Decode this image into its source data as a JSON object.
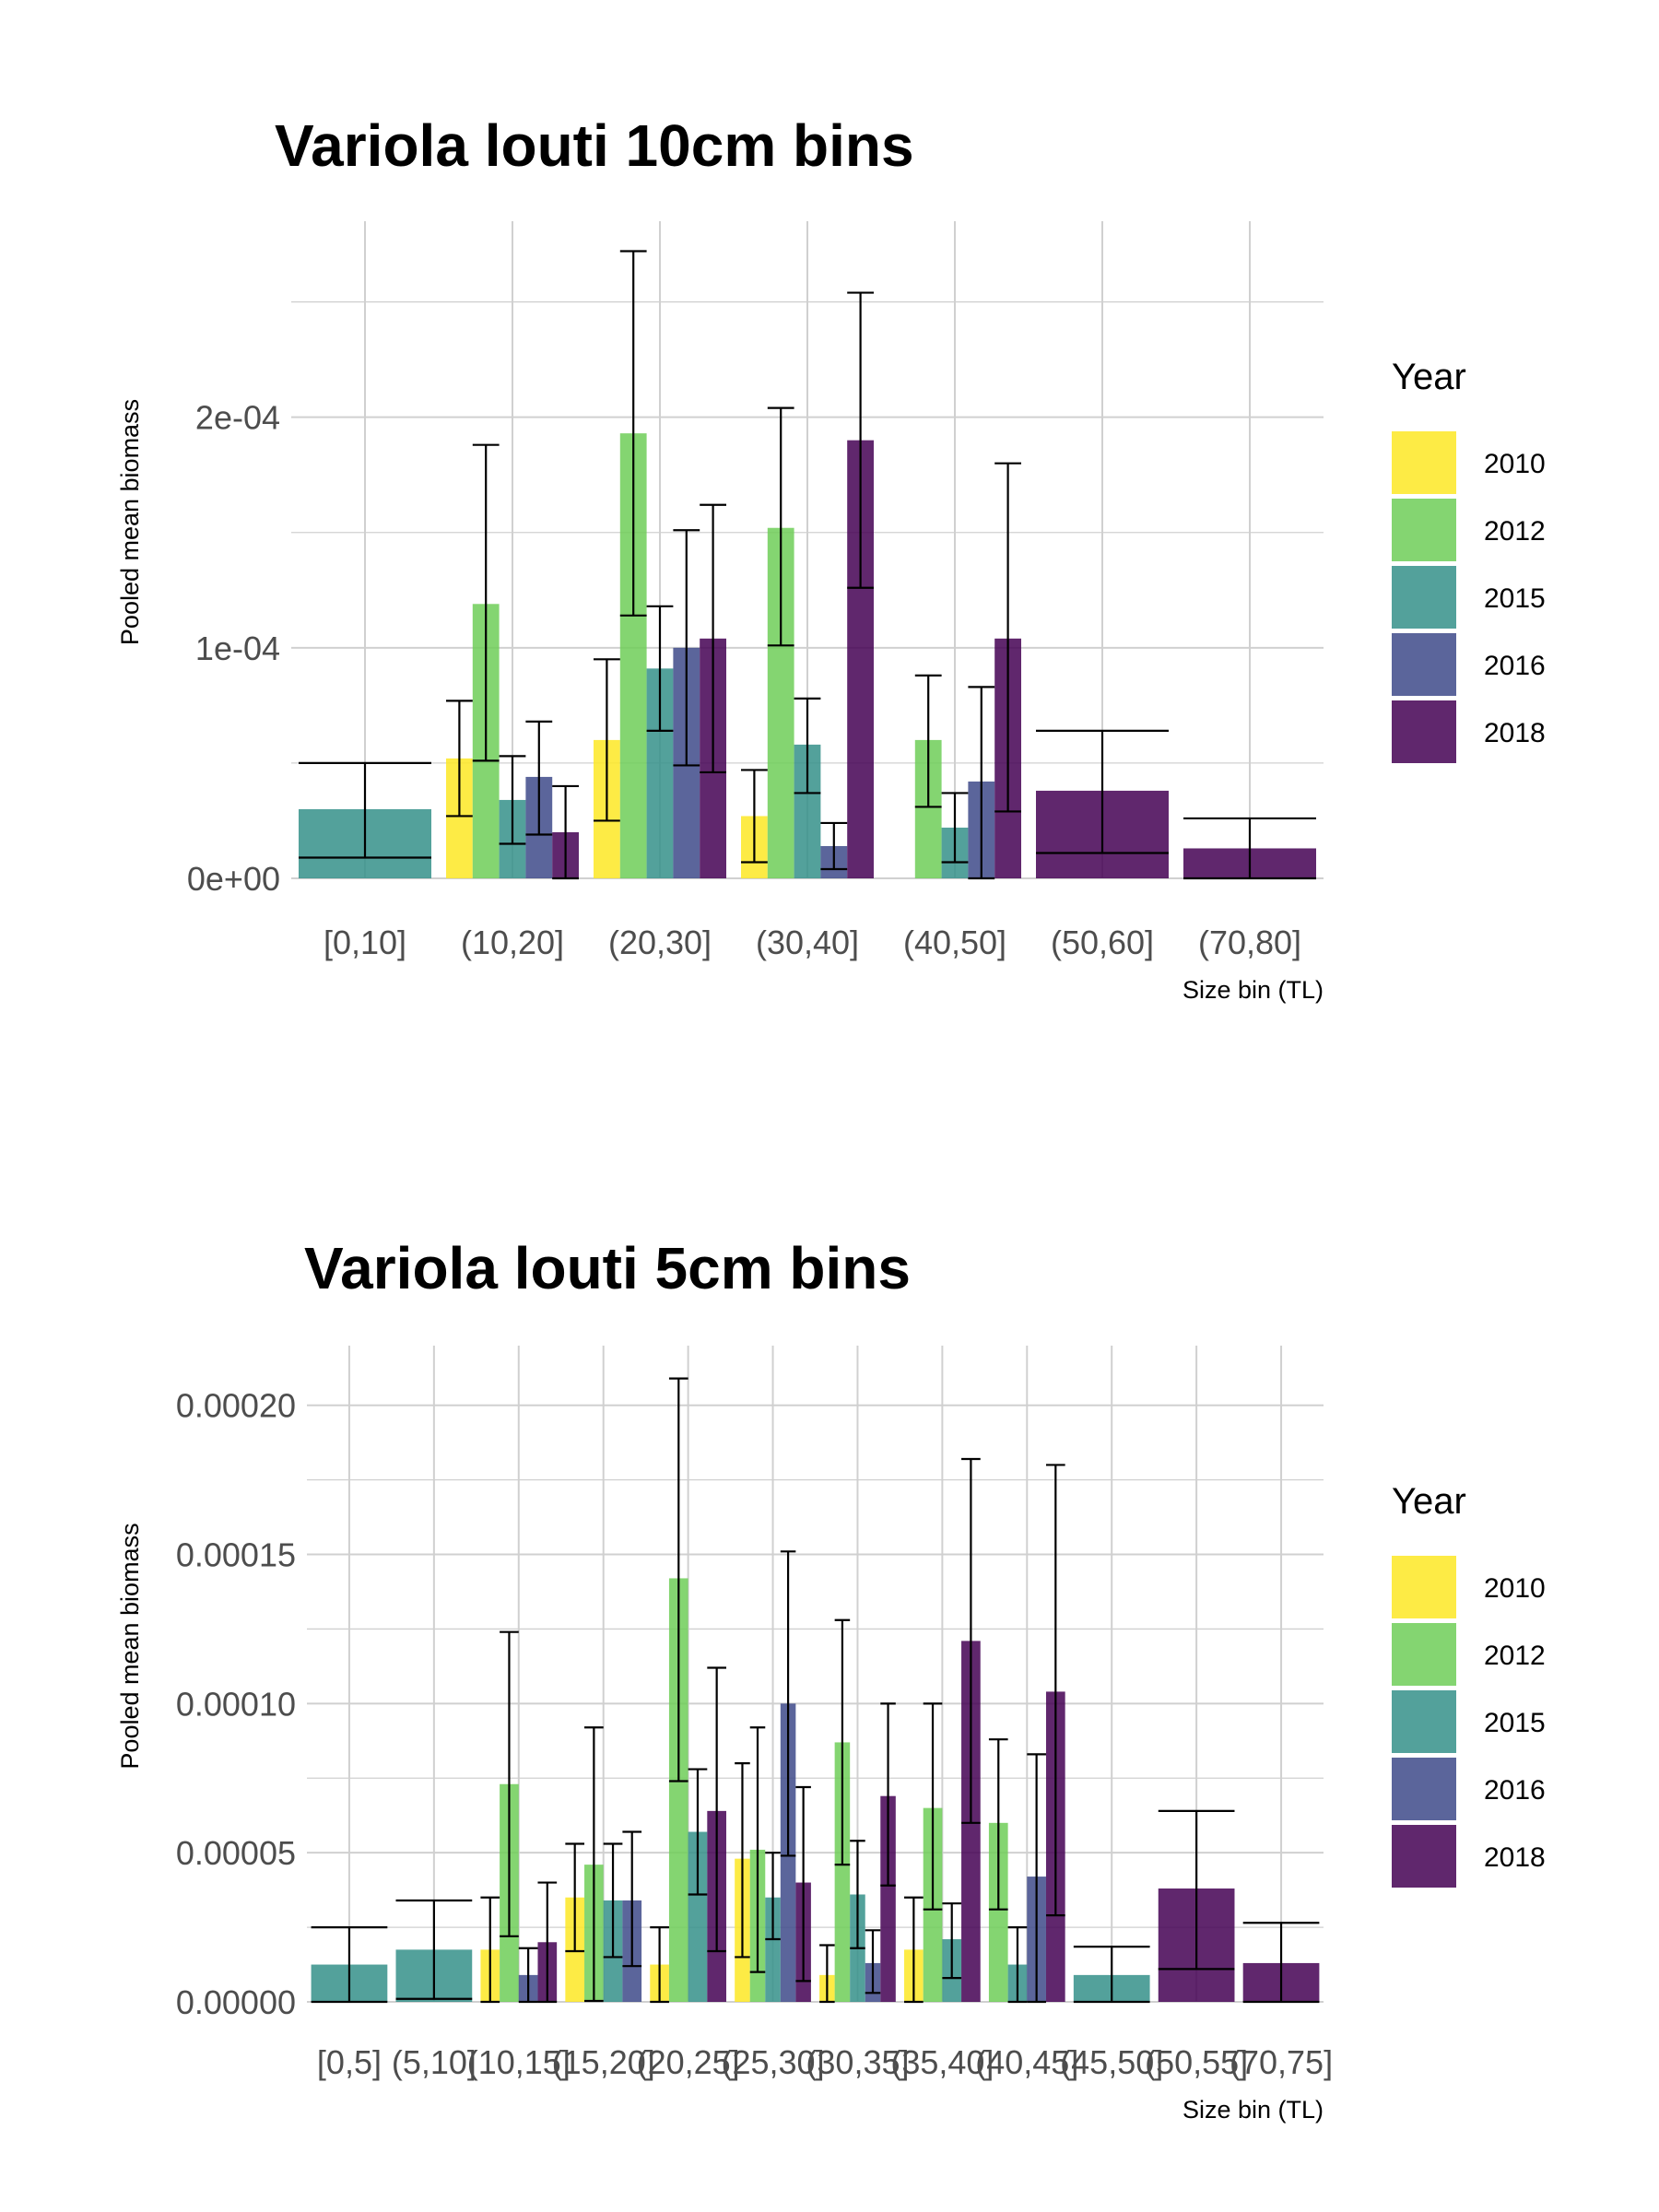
{
  "chart_data": [
    {
      "type": "bar",
      "title": "Variola louti 10cm bins",
      "xlabel": "Size bin (TL)",
      "ylabel": "Pooled mean biomass",
      "ylim": [
        0,
        0.000285
      ],
      "yticks": [
        "0e+00",
        "1e-04",
        "2e-04"
      ],
      "ytick_values": [
        0,
        0.0001,
        0.0002
      ],
      "categories": [
        "[0,10]",
        "(10,20]",
        "(20,30]",
        "(30,40]",
        "(40,50]",
        "(50,60]",
        "(70,80]"
      ],
      "legend": {
        "title": "Year",
        "position": "right"
      },
      "grid": true,
      "bars": [
        {
          "category": "[0,10]",
          "year": "2015",
          "offset": 0,
          "width": 1,
          "value": 3e-05,
          "lo": 9e-06,
          "hi": 5e-05
        },
        {
          "category": "(10,20]",
          "year": "2010",
          "offset": 0,
          "width": 0.2,
          "value": 5.2e-05,
          "lo": 2.7e-05,
          "hi": 7.7e-05
        },
        {
          "category": "(10,20]",
          "year": "2012",
          "offset": 1,
          "width": 0.2,
          "value": 0.000119,
          "lo": 5.1e-05,
          "hi": 0.000188
        },
        {
          "category": "(10,20]",
          "year": "2015",
          "offset": 2,
          "width": 0.2,
          "value": 3.4e-05,
          "lo": 1.5e-05,
          "hi": 5.3e-05
        },
        {
          "category": "(10,20]",
          "year": "2016",
          "offset": 3,
          "width": 0.2,
          "value": 4.4e-05,
          "lo": 1.9e-05,
          "hi": 6.8e-05
        },
        {
          "category": "(10,20]",
          "year": "2018",
          "offset": 4,
          "width": 0.2,
          "value": 2e-05,
          "lo": 0,
          "hi": 4e-05
        },
        {
          "category": "(20,30]",
          "year": "2010",
          "offset": 0,
          "width": 0.2,
          "value": 6e-05,
          "lo": 2.5e-05,
          "hi": 9.5e-05
        },
        {
          "category": "(20,30]",
          "year": "2012",
          "offset": 1,
          "width": 0.2,
          "value": 0.000193,
          "lo": 0.000114,
          "hi": 0.000272
        },
        {
          "category": "(20,30]",
          "year": "2015",
          "offset": 2,
          "width": 0.2,
          "value": 9.1e-05,
          "lo": 6.4e-05,
          "hi": 0.000118
        },
        {
          "category": "(20,30]",
          "year": "2016",
          "offset": 3,
          "width": 0.2,
          "value": 0.0001,
          "lo": 4.9e-05,
          "hi": 0.000151
        },
        {
          "category": "(20,30]",
          "year": "2018",
          "offset": 4,
          "width": 0.2,
          "value": 0.000104,
          "lo": 4.6e-05,
          "hi": 0.000162
        },
        {
          "category": "(30,40]",
          "year": "2010",
          "offset": 0,
          "width": 0.2,
          "value": 2.7e-05,
          "lo": 7e-06,
          "hi": 4.7e-05
        },
        {
          "category": "(30,40]",
          "year": "2012",
          "offset": 1,
          "width": 0.2,
          "value": 0.000152,
          "lo": 0.000101,
          "hi": 0.000204
        },
        {
          "category": "(30,40]",
          "year": "2015",
          "offset": 2,
          "width": 0.2,
          "value": 5.8e-05,
          "lo": 3.7e-05,
          "hi": 7.8e-05
        },
        {
          "category": "(30,40]",
          "year": "2016",
          "offset": 3,
          "width": 0.2,
          "value": 1.4e-05,
          "lo": 4e-06,
          "hi": 2.4e-05
        },
        {
          "category": "(30,40]",
          "year": "2018",
          "offset": 4,
          "width": 0.2,
          "value": 0.00019,
          "lo": 0.000126,
          "hi": 0.000254
        },
        {
          "category": "(40,50]",
          "year": "2012",
          "offset": 1,
          "width": 0.2,
          "value": 6e-05,
          "lo": 3.1e-05,
          "hi": 8.8e-05
        },
        {
          "category": "(40,50]",
          "year": "2015",
          "offset": 2,
          "width": 0.2,
          "value": 2.2e-05,
          "lo": 7e-06,
          "hi": 3.7e-05
        },
        {
          "category": "(40,50]",
          "year": "2016",
          "offset": 3,
          "width": 0.2,
          "value": 4.2e-05,
          "lo": 0,
          "hi": 8.3e-05
        },
        {
          "category": "(40,50]",
          "year": "2018",
          "offset": 4,
          "width": 0.2,
          "value": 0.000104,
          "lo": 2.9e-05,
          "hi": 0.00018
        },
        {
          "category": "(50,60]",
          "year": "2018",
          "offset": 0,
          "width": 1,
          "value": 3.8e-05,
          "lo": 1.1e-05,
          "hi": 6.4e-05
        },
        {
          "category": "(70,80]",
          "year": "2018",
          "offset": 0,
          "width": 1,
          "value": 1.3e-05,
          "lo": 0,
          "hi": 2.6e-05
        }
      ]
    },
    {
      "type": "bar",
      "title": "Variola louti 5cm bins",
      "xlabel": "Size bin (TL)",
      "ylabel": "Pooled mean biomass",
      "ylim": [
        0,
        0.00022
      ],
      "yticks": [
        "0.00000",
        "0.00005",
        "0.00010",
        "0.00015",
        "0.00020"
      ],
      "ytick_values": [
        0,
        5e-05,
        0.0001,
        0.00015,
        0.0002
      ],
      "categories": [
        "[0,5]",
        "(5,10]",
        "(10,15]",
        "(15,20]",
        "(20,25]",
        "(25,30]",
        "(30,35]",
        "(35,40]",
        "(40,45]",
        "(45,50]",
        "(50,55]",
        "(70,75]"
      ],
      "legend": {
        "title": "Year",
        "position": "right"
      },
      "grid": true,
      "bars": [
        {
          "category": "[0,5]",
          "year": "2015",
          "offset": 0,
          "width": 1,
          "value": 1.25e-05,
          "lo": 0,
          "hi": 2.5e-05
        },
        {
          "category": "(5,10]",
          "year": "2015",
          "offset": 0,
          "width": 1,
          "value": 1.75e-05,
          "lo": 1e-06,
          "hi": 3.4e-05
        },
        {
          "category": "(10,15]",
          "year": "2010",
          "offset": 0,
          "width": 0.25,
          "value": 1.75e-05,
          "lo": 0,
          "hi": 3.5e-05
        },
        {
          "category": "(10,15]",
          "year": "2012",
          "offset": 1,
          "width": 0.25,
          "value": 7.3e-05,
          "lo": 2.2e-05,
          "hi": 0.000124
        },
        {
          "category": "(10,15]",
          "year": "2016",
          "offset": 2,
          "width": 0.25,
          "value": 9e-06,
          "lo": 0,
          "hi": 1.8e-05
        },
        {
          "category": "(10,15]",
          "year": "2018",
          "offset": 3,
          "width": 0.25,
          "value": 2e-05,
          "lo": 0,
          "hi": 4e-05
        },
        {
          "category": "(15,20]",
          "year": "2010",
          "offset": 0,
          "width": 0.25,
          "value": 3.5e-05,
          "lo": 1.7e-05,
          "hi": 5.3e-05
        },
        {
          "category": "(15,20]",
          "year": "2012",
          "offset": 1,
          "width": 0.25,
          "value": 4.6e-05,
          "lo": 3e-07,
          "hi": 9.2e-05
        },
        {
          "category": "(15,20]",
          "year": "2015",
          "offset": 2,
          "width": 0.25,
          "value": 3.4e-05,
          "lo": 1.5e-05,
          "hi": 5.3e-05
        },
        {
          "category": "(15,20]",
          "year": "2016",
          "offset": 3,
          "width": 0.25,
          "value": 3.4e-05,
          "lo": 1.2e-05,
          "hi": 5.7e-05
        },
        {
          "category": "(20,25]",
          "year": "2010",
          "offset": 0,
          "width": 0.25,
          "value": 1.25e-05,
          "lo": 0,
          "hi": 2.5e-05
        },
        {
          "category": "(20,25]",
          "year": "2012",
          "offset": 1,
          "width": 0.25,
          "value": 0.000142,
          "lo": 7.4e-05,
          "hi": 0.000209
        },
        {
          "category": "(20,25]",
          "year": "2015",
          "offset": 2,
          "width": 0.25,
          "value": 5.7e-05,
          "lo": 3.6e-05,
          "hi": 7.8e-05
        },
        {
          "category": "(20,25]",
          "year": "2018",
          "offset": 3,
          "width": 0.25,
          "value": 6.4e-05,
          "lo": 1.7e-05,
          "hi": 0.000112
        },
        {
          "category": "(25,30]",
          "year": "2010",
          "offset": 0,
          "width": 0.2,
          "value": 4.8e-05,
          "lo": 1.5e-05,
          "hi": 8e-05
        },
        {
          "category": "(25,30]",
          "year": "2012",
          "offset": 1,
          "width": 0.2,
          "value": 5.1e-05,
          "lo": 1e-05,
          "hi": 9.2e-05
        },
        {
          "category": "(25,30]",
          "year": "2015",
          "offset": 2,
          "width": 0.2,
          "value": 3.5e-05,
          "lo": 2.1e-05,
          "hi": 5e-05
        },
        {
          "category": "(25,30]",
          "year": "2016",
          "offset": 3,
          "width": 0.2,
          "value": 0.0001,
          "lo": 4.9e-05,
          "hi": 0.000151
        },
        {
          "category": "(25,30]",
          "year": "2018",
          "offset": 4,
          "width": 0.2,
          "value": 4e-05,
          "lo": 7e-06,
          "hi": 7.2e-05
        },
        {
          "category": "(30,35]",
          "year": "2010",
          "offset": 0,
          "width": 0.2,
          "value": 9e-06,
          "lo": 0,
          "hi": 1.9e-05
        },
        {
          "category": "(30,35]",
          "year": "2012",
          "offset": 1,
          "width": 0.2,
          "value": 8.7e-05,
          "lo": 4.6e-05,
          "hi": 0.000128
        },
        {
          "category": "(30,35]",
          "year": "2015",
          "offset": 2,
          "width": 0.2,
          "value": 3.6e-05,
          "lo": 1.8e-05,
          "hi": 5.4e-05
        },
        {
          "category": "(30,35]",
          "year": "2016",
          "offset": 3,
          "width": 0.2,
          "value": 1.3e-05,
          "lo": 3e-06,
          "hi": 2.4e-05
        },
        {
          "category": "(30,35]",
          "year": "2018",
          "offset": 4,
          "width": 0.2,
          "value": 6.9e-05,
          "lo": 3.9e-05,
          "hi": 0.0001
        },
        {
          "category": "(35,40]",
          "year": "2010",
          "offset": 0,
          "width": 0.25,
          "value": 1.75e-05,
          "lo": 0,
          "hi": 3.5e-05
        },
        {
          "category": "(35,40]",
          "year": "2012",
          "offset": 1,
          "width": 0.25,
          "value": 6.5e-05,
          "lo": 3.1e-05,
          "hi": 0.0001
        },
        {
          "category": "(35,40]",
          "year": "2015",
          "offset": 2,
          "width": 0.25,
          "value": 2.1e-05,
          "lo": 8e-06,
          "hi": 3.3e-05
        },
        {
          "category": "(35,40]",
          "year": "2018",
          "offset": 3,
          "width": 0.25,
          "value": 0.000121,
          "lo": 6e-05,
          "hi": 0.000182
        },
        {
          "category": "(40,45]",
          "year": "2012",
          "offset": 0,
          "width": 0.25,
          "value": 6e-05,
          "lo": 3.1e-05,
          "hi": 8.8e-05
        },
        {
          "category": "(40,45]",
          "year": "2015",
          "offset": 1,
          "width": 0.25,
          "value": 1.25e-05,
          "lo": 0,
          "hi": 2.5e-05
        },
        {
          "category": "(40,45]",
          "year": "2016",
          "offset": 2,
          "width": 0.25,
          "value": 4.2e-05,
          "lo": 0,
          "hi": 8.3e-05
        },
        {
          "category": "(40,45]",
          "year": "2018",
          "offset": 3,
          "width": 0.25,
          "value": 0.000104,
          "lo": 2.9e-05,
          "hi": 0.00018
        },
        {
          "category": "(45,50]",
          "year": "2015",
          "offset": 0,
          "width": 1,
          "value": 9e-06,
          "lo": 0,
          "hi": 1.85e-05
        },
        {
          "category": "(50,55]",
          "year": "2018",
          "offset": 0,
          "width": 1,
          "value": 3.8e-05,
          "lo": 1.1e-05,
          "hi": 6.4e-05
        },
        {
          "category": "(70,75]",
          "year": "2018",
          "offset": 0,
          "width": 1,
          "value": 1.3e-05,
          "lo": 0,
          "hi": 2.65e-05
        }
      ]
    }
  ],
  "legend_items": [
    {
      "year": "2010",
      "color": "#FDE725"
    },
    {
      "year": "2012",
      "color": "#6ECE58"
    },
    {
      "year": "2015",
      "color": "#35918A"
    },
    {
      "year": "2016",
      "color": "#3E4A89"
    },
    {
      "year": "2018",
      "color": "#440154"
    }
  ],
  "colors": {
    "grid": "#d0d0d0",
    "tick_text": "#4d4d4d",
    "error_bar": "#000000"
  },
  "bar_opacity": 0.85
}
